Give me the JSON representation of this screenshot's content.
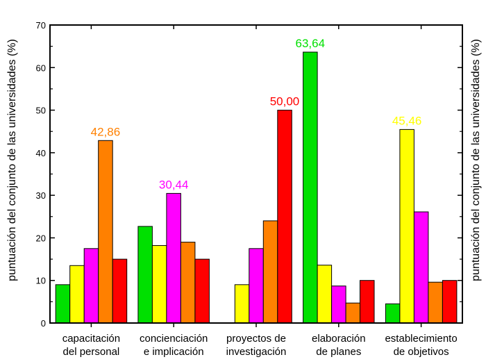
{
  "chart_data": {
    "type": "bar",
    "ylabel": "puntuación del conjunto de las universidades (%)",
    "ylabel_right": "puntuación del conjunto de las universidades (%)",
    "ylim": [
      0,
      70
    ],
    "yticks": [
      0,
      10,
      20,
      30,
      40,
      50,
      60,
      70
    ],
    "grid": false,
    "categories": [
      [
        "capacitación",
        "del personal"
      ],
      [
        "concienciación",
        "e implicación"
      ],
      [
        "proyectos de",
        "investigación"
      ],
      [
        "elaboración",
        "de planes"
      ],
      [
        "establecimiento",
        "de objetivos"
      ]
    ],
    "series": [
      {
        "color": "#00e000",
        "values": [
          9.0,
          22.7,
          0,
          63.64,
          4.5
        ]
      },
      {
        "color": "#ffff00",
        "values": [
          13.5,
          18.2,
          9.0,
          13.6,
          45.46
        ]
      },
      {
        "color": "#ff00ff",
        "values": [
          17.5,
          30.44,
          17.5,
          8.7,
          26.1
        ]
      },
      {
        "color": "#ff8000",
        "values": [
          42.86,
          19.0,
          24.0,
          4.7,
          9.6
        ]
      },
      {
        "color": "#ff0000",
        "values": [
          15.0,
          15.0,
          50.0,
          10.0,
          10.0
        ]
      }
    ],
    "annotations": [
      {
        "text": "42,86",
        "category": 0,
        "series": 3,
        "color": "#ff8000"
      },
      {
        "text": "30,44",
        "category": 1,
        "series": 2,
        "color": "#ff00ff"
      },
      {
        "text": "50,00",
        "category": 2,
        "series": 4,
        "color": "#ff0000"
      },
      {
        "text": "63,64",
        "category": 3,
        "series": 0,
        "color": "#00e000"
      },
      {
        "text": "45,46",
        "category": 4,
        "series": 1,
        "color": "#ffff00"
      }
    ]
  }
}
